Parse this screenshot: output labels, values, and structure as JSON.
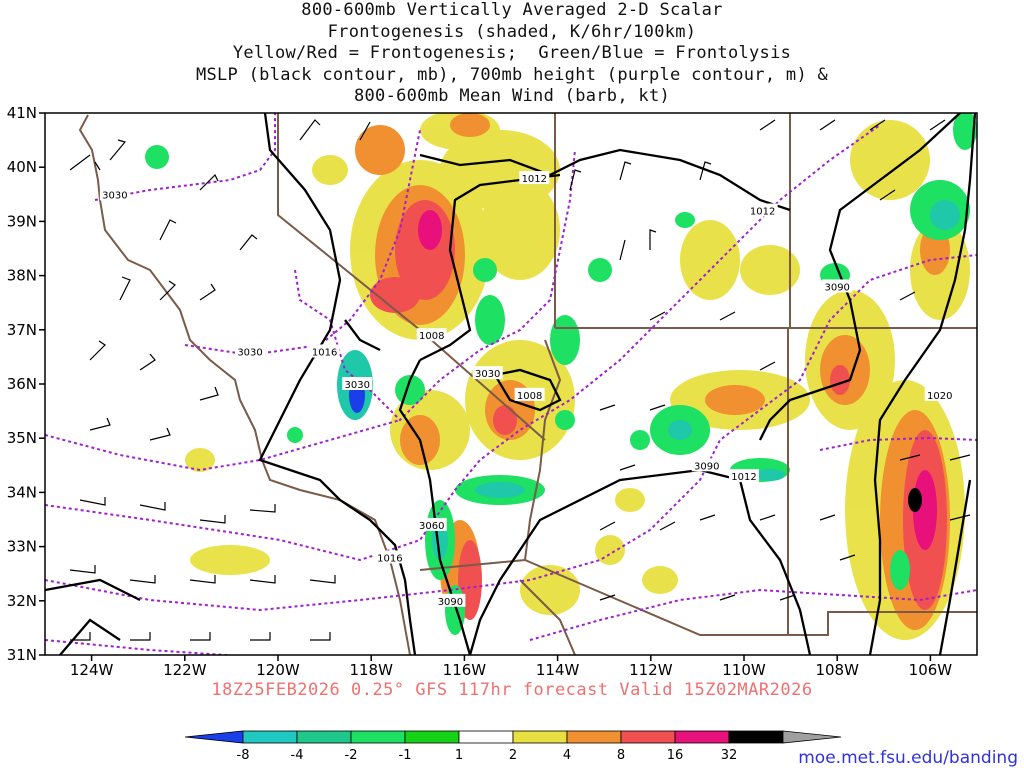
{
  "title": {
    "lines": [
      "800-600mb Vertically Averaged 2-D Scalar",
      "Frontogenesis (shaded, K/6hr/100km)",
      "Yellow/Red = Frontogenesis;  Green/Blue = Frontolysis",
      "MSLP (black contour, mb), 700mb height (purple contour, m) &",
      "800-600mb Mean Wind (barb, kt)"
    ]
  },
  "map": {
    "lat_labels": [
      "41N",
      "40N",
      "39N",
      "38N",
      "37N",
      "36N",
      "35N",
      "34N",
      "33N",
      "32N",
      "31N"
    ],
    "lon_labels": [
      "124W",
      "122W",
      "120W",
      "118W",
      "116W",
      "114W",
      "112W",
      "110W",
      "108W",
      "106W"
    ],
    "lat_range": [
      31,
      41
    ],
    "lon_range": [
      -125,
      -105
    ],
    "mslp_labels": [
      {
        "text": "1012",
        "lon": -114.5,
        "lat": 39.8
      },
      {
        "text": "1012",
        "lon": -109.6,
        "lat": 39.2
      },
      {
        "text": "1008",
        "lon": -116.7,
        "lat": 36.9
      },
      {
        "text": "1016",
        "lon": -119.0,
        "lat": 36.6
      },
      {
        "text": "1008",
        "lon": -114.6,
        "lat": 35.8
      },
      {
        "text": "1012",
        "lon": -110.0,
        "lat": 34.3
      },
      {
        "text": "1016",
        "lon": -117.6,
        "lat": 32.8
      },
      {
        "text": "1020",
        "lon": -105.8,
        "lat": 35.8
      }
    ],
    "height_labels": [
      {
        "text": "3030",
        "lon": -123.5,
        "lat": 39.5
      },
      {
        "text": "3030",
        "lon": -120.6,
        "lat": 36.6
      },
      {
        "text": "3030",
        "lon": -118.3,
        "lat": 36.0
      },
      {
        "text": "3030",
        "lon": -115.5,
        "lat": 36.2
      },
      {
        "text": "3060",
        "lon": -116.7,
        "lat": 33.4
      },
      {
        "text": "3090",
        "lon": -116.3,
        "lat": 32.0
      },
      {
        "text": "3090",
        "lon": -110.8,
        "lat": 34.5
      },
      {
        "text": "3090",
        "lon": -108.0,
        "lat": 37.8
      }
    ]
  },
  "footer": {
    "caption": "18Z25FEB2026 0.25° GFS 117hr forecast Valid 15Z02MAR2026",
    "credit": "moe.met.fsu.edu/banding"
  },
  "legend": {
    "labels": [
      "-8",
      "-4",
      "-2",
      "-1",
      "1",
      "2",
      "4",
      "8",
      "16",
      "32"
    ],
    "colors": [
      "#1a3fe8",
      "#1fc8c0",
      "#1ec88a",
      "#1ee062",
      "#16d216",
      "#ffffff",
      "#e8e040",
      "#f09030",
      "#f05050",
      "#e8107a",
      "#000000",
      "#a0a0a0"
    ]
  }
}
